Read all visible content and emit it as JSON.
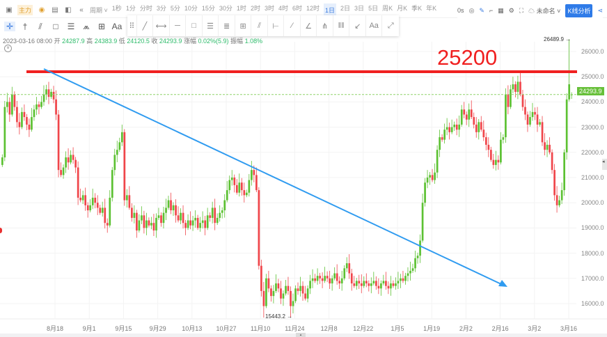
{
  "topbar": {
    "main_tag": "主力",
    "cycle_label": "周期",
    "periods": [
      "1秒",
      "1分",
      "分时",
      "3分",
      "5分",
      "10分",
      "15分",
      "30分",
      "1时",
      "2时",
      "3时",
      "4时",
      "6时",
      "12时",
      "1日",
      "2日",
      "3日",
      "5日",
      "周K",
      "月K",
      "季K",
      "年K"
    ],
    "active_period": "1日",
    "timer": "0s",
    "layout_name": "未命名",
    "analysis_button": "K线分析"
  },
  "drawbar": {
    "text_tool": "Aa",
    "popup_text_tool": "Aa"
  },
  "info": {
    "datetime": "2023-03-16 08:00",
    "open_label": "开",
    "open": "24287.9",
    "high_label": "高",
    "high": "24383.9",
    "low_label": "低",
    "low": "24120.5",
    "close_label": "收",
    "close": "24293.9",
    "change_label": "涨幅",
    "change": "0.02%(5.9)",
    "amplitude_label": "振幅",
    "amplitude": "1.08%"
  },
  "annotations": {
    "resistance_text": "25200",
    "max_label": "26489.9 →",
    "min_label": "15443.2 →",
    "current_price": "24293.9"
  },
  "colors": {
    "up": "#5cc132",
    "down": "#f0454a",
    "resistance": "#f02020",
    "trendline": "#2f9bf0",
    "price_line": "#8fd46a"
  },
  "chart_data": {
    "type": "candlestick",
    "y_ticks": [
      "26000.0",
      "25000.0",
      "24000.0",
      "23000.0",
      "22000.0",
      "21000.0",
      "20000.0",
      "19000.0",
      "18000.0",
      "17000.0",
      "16000.0"
    ],
    "ylim": [
      15300,
      26600
    ],
    "x_ticks": [
      "8月18",
      "9月1",
      "9月15",
      "9月29",
      "10月13",
      "10月27",
      "11月10",
      "11月24",
      "12月8",
      "12月22",
      "1月5",
      "1月19",
      "2月2",
      "2月16",
      "3月2",
      "3月16"
    ],
    "closes": [
      21800,
      23800,
      24000,
      23500,
      24300,
      23800,
      23200,
      23000,
      23600,
      23400,
      23100,
      22900,
      23400,
      23700,
      23900,
      23800,
      24000,
      24300,
      24500,
      24200,
      24400,
      24100,
      23500,
      21300,
      21100,
      21400,
      21800,
      21600,
      21900,
      21700,
      21400,
      20200,
      20100,
      20300,
      19900,
      19700,
      19900,
      20200,
      20000,
      19800,
      19600,
      19800,
      19200,
      19100,
      20200,
      21300,
      21900,
      22100,
      22400,
      22800,
      20100,
      20300,
      19800,
      19400,
      19600,
      18900,
      19300,
      19500,
      19000,
      19300,
      19100,
      19200,
      18900,
      19400,
      19500,
      19200,
      19600,
      19800,
      20100,
      19700,
      19900,
      19500,
      19300,
      19600,
      19200,
      19000,
      19300,
      19100,
      19300,
      19400,
      19000,
      19200,
      19300,
      19000,
      19500,
      19400,
      19800,
      19200,
      19400,
      19600,
      19700,
      20100,
      20500,
      20900,
      21000,
      20700,
      20400,
      20800,
      20500,
      20300,
      20400,
      20900,
      21300,
      21100,
      20500,
      17500,
      16500,
      15900,
      17000,
      16600,
      16300,
      16500,
      16800,
      16600,
      16200,
      16400,
      16700,
      16500,
      15900,
      16100,
      16600,
      16500,
      16700,
      16400,
      16200,
      16600,
      16900,
      17000,
      16900,
      17100,
      17000,
      16900,
      17100,
      17000,
      16800,
      17000,
      17200,
      16900,
      16800,
      17000,
      17400,
      17600,
      17200,
      16800,
      16700,
      16900,
      16800,
      16700,
      16900,
      16800,
      16700,
      16800,
      16900,
      16700,
      16600,
      16800,
      16900,
      16700,
      16600,
      16800,
      16700,
      16800,
      16900,
      17000,
      16900,
      17100,
      17200,
      17300,
      17400,
      17800,
      17900,
      18500,
      20000,
      20800,
      21000,
      21100,
      20900,
      21200,
      22100,
      22600,
      22500,
      22900,
      23000,
      22800,
      23000,
      23100,
      22900,
      23100,
      23700,
      23500,
      23300,
      23700,
      23400,
      23100,
      22800,
      23200,
      22900,
      22600,
      22300,
      22100,
      21700,
      21500,
      21700,
      21600,
      22500,
      22600,
      24300,
      23800,
      24500,
      24700,
      24400,
      24800,
      24300,
      23800,
      23500,
      23100,
      23400,
      23600,
      23500,
      23100,
      23200,
      22400,
      22100,
      22300,
      22000,
      21300,
      20300,
      19900,
      20100,
      20500,
      22000,
      24100,
      24700,
      24293.9
    ],
    "period_high": 26489.9,
    "period_low": 15443.2,
    "last": {
      "open": 24287.9,
      "high": 24383.9,
      "low": 24120.5,
      "close": 24293.9
    },
    "overlays": {
      "horizontal_line": 25200,
      "trendline": "descending, from Aug high to Jan"
    }
  }
}
